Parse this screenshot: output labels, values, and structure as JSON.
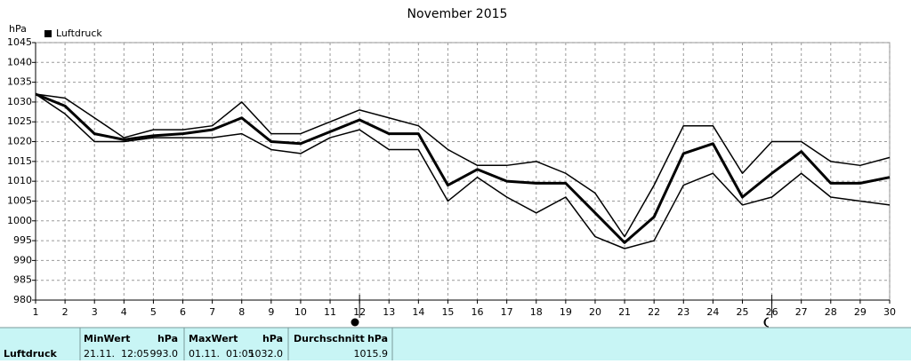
{
  "chart_data": {
    "type": "line",
    "title": "November 2015",
    "y_label": "hPa",
    "x": [
      1,
      2,
      3,
      4,
      5,
      6,
      7,
      8,
      9,
      10,
      11,
      12,
      13,
      14,
      15,
      16,
      17,
      18,
      19,
      20,
      21,
      22,
      23,
      24,
      25,
      26,
      27,
      28,
      29,
      30
    ],
    "xlim": [
      1,
      30
    ],
    "xticks": [
      1,
      2,
      3,
      4,
      5,
      6,
      7,
      8,
      9,
      10,
      11,
      12,
      13,
      14,
      15,
      16,
      17,
      18,
      19,
      20,
      21,
      22,
      23,
      24,
      25,
      26,
      27,
      28,
      29,
      30
    ],
    "ylim": [
      980,
      1045
    ],
    "yticks": [
      980,
      985,
      990,
      995,
      1000,
      1005,
      1010,
      1015,
      1020,
      1025,
      1030,
      1035,
      1040,
      1045
    ],
    "grid": true,
    "legend": "top-left",
    "series": [
      {
        "color": "#000000",
        "values": [
          1032,
          1031,
          1026,
          1021,
          1023,
          1023,
          1024,
          1030,
          1022,
          1022,
          1025,
          1028,
          1026,
          1024,
          1018,
          1014,
          1014,
          1015,
          1012,
          1007,
          996,
          1009,
          1024,
          1024,
          1012,
          1020,
          1020,
          1015,
          1014,
          1016
        ]
      },
      {
        "name": "Luftdruck",
        "color": "#000000",
        "values": [
          1032,
          1029,
          1022,
          1020.5,
          1021.5,
          1022,
          1023,
          1026,
          1020,
          1019.5,
          1022.5,
          1025.5,
          1022,
          1022,
          1009,
          1013,
          1010,
          1009.5,
          1009.5,
          1002,
          994.5,
          1001,
          1017,
          1019.5,
          1006,
          1012,
          1017.5,
          1009.5,
          1009.5,
          1011
        ]
      },
      {
        "color": "#000000",
        "values": [
          1032,
          1027,
          1020,
          1020,
          1021,
          1021,
          1021,
          1022,
          1018,
          1017,
          1021,
          1023,
          1018,
          1018,
          1005,
          1011,
          1006,
          1002,
          1006,
          996,
          993,
          995,
          1009,
          1012,
          1004,
          1006,
          1012,
          1006,
          1005,
          1004
        ]
      }
    ]
  },
  "table": {
    "row_label": "Luftdruck",
    "columns": [
      {
        "header": "MinWert",
        "unit": "hPa",
        "time": "21.11.  12:05",
        "value": "993.0"
      },
      {
        "header": "MaxWert",
        "unit": "hPa",
        "time": "01.11.  01:05",
        "value": "1032.0"
      },
      {
        "header": "Durchschnitt",
        "unit": "hPa",
        "value": "1015.9"
      }
    ]
  }
}
